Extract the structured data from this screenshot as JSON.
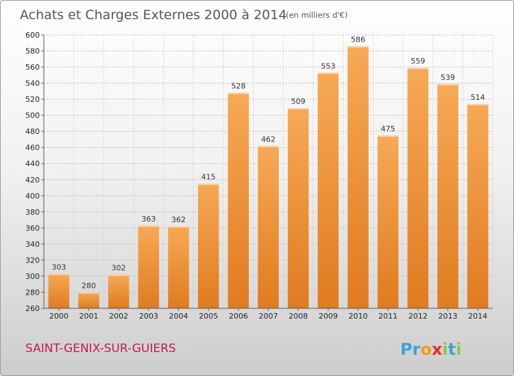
{
  "chart_data": {
    "type": "bar",
    "title": "Achats et Charges Externes 2000 à 2014",
    "subtitle": "(en milliers d'€)",
    "categories": [
      "2000",
      "2001",
      "2002",
      "2003",
      "2004",
      "2005",
      "2006",
      "2007",
      "2008",
      "2009",
      "2010",
      "2011",
      "2012",
      "2013",
      "2014"
    ],
    "values": [
      303,
      280,
      302,
      363,
      362,
      415,
      528,
      462,
      509,
      553,
      586,
      475,
      559,
      539,
      514
    ],
    "ylim": [
      260,
      600
    ],
    "yticks": [
      260,
      280,
      300,
      320,
      340,
      360,
      380,
      400,
      420,
      440,
      460,
      480,
      500,
      520,
      540,
      560,
      580,
      600
    ],
    "xlabel": "",
    "ylabel": "",
    "grid": true,
    "bar_color": "#f5a04c",
    "bar_color_dark": "#e07b20"
  },
  "place_name": "SAINT-GENIX-SUR-GUIERS",
  "logo": {
    "text": "Proxiti",
    "letters": [
      "P",
      "r",
      "o",
      "x",
      "i",
      "t",
      "i"
    ],
    "colors": [
      "#3aa3dc",
      "#3aa3dc",
      "#f39c12",
      "#e6321e",
      "#8cc63f",
      "#3aa3dc",
      "#8cc63f"
    ]
  }
}
